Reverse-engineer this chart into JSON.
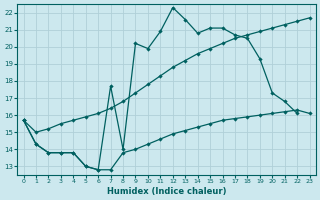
{
  "xlabel": "Humidex (Indice chaleur)",
  "bg_color": "#cce8ee",
  "grid_color": "#b0d0d8",
  "line_color": "#006060",
  "xlim": [
    -0.5,
    23.5
  ],
  "ylim": [
    12.5,
    22.5
  ],
  "x_ticks": [
    0,
    1,
    2,
    3,
    4,
    5,
    6,
    7,
    8,
    9,
    10,
    11,
    12,
    13,
    14,
    15,
    16,
    17,
    18,
    19,
    20,
    21,
    22,
    23
  ],
  "y_ticks": [
    13,
    14,
    15,
    16,
    17,
    18,
    19,
    20,
    21,
    22
  ],
  "line1_x": [
    0,
    1,
    2,
    3,
    4,
    5,
    6,
    7,
    8,
    9,
    10,
    11,
    12,
    13,
    14,
    15,
    16,
    17,
    18,
    19,
    20,
    21,
    22
  ],
  "line1_y": [
    15.7,
    14.3,
    13.8,
    13.8,
    13.8,
    13.0,
    12.8,
    17.7,
    14.0,
    20.2,
    19.9,
    20.9,
    22.3,
    21.6,
    20.8,
    21.1,
    21.1,
    20.7,
    20.5,
    19.3,
    17.3,
    16.8,
    16.1
  ],
  "line2_x": [
    0,
    1,
    2,
    3,
    4,
    5,
    6,
    7,
    8,
    9,
    10,
    11,
    12,
    13,
    14,
    15,
    16,
    17,
    18,
    19,
    20,
    21,
    22,
    23
  ],
  "line2_y": [
    15.7,
    15.0,
    15.2,
    15.5,
    15.7,
    15.9,
    16.1,
    16.4,
    16.8,
    17.3,
    17.8,
    18.3,
    18.8,
    19.2,
    19.6,
    19.9,
    20.2,
    20.5,
    20.7,
    20.9,
    21.1,
    21.3,
    21.5,
    21.7
  ],
  "line3_x": [
    0,
    1,
    2,
    3,
    4,
    5,
    6,
    7,
    8,
    9,
    10,
    11,
    12,
    13,
    14,
    15,
    16,
    17,
    18,
    19,
    20,
    21,
    22,
    23
  ],
  "line3_y": [
    15.7,
    14.3,
    13.8,
    13.8,
    13.8,
    13.0,
    12.8,
    12.8,
    13.8,
    14.0,
    14.3,
    14.6,
    14.9,
    15.1,
    15.3,
    15.5,
    15.7,
    15.8,
    15.9,
    16.0,
    16.1,
    16.2,
    16.3,
    16.1
  ]
}
